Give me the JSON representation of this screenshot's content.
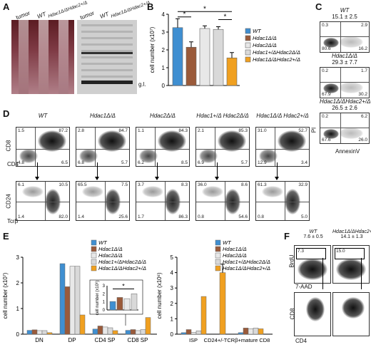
{
  "panelA": {
    "label": "A",
    "lanes": [
      "tumor",
      "WT",
      "Hdac1Δ/ΔHdac2+/Δ",
      "tumor",
      "WT",
      "Hdac1Δ/ΔHdac2+/Δ"
    ],
    "gl": "g.l."
  },
  "panelB": {
    "label": "B",
    "ylabel": "cell number (x10⁷)",
    "legend": [
      "WT",
      "Hdac1Δ/Δ",
      "Hdac2Δ/Δ",
      "Hdac1+/ΔHdac2Δ/Δ",
      "Hdac1Δ/ΔHdac2+/Δ"
    ],
    "star": "*"
  },
  "chart_data": [
    {
      "type": "bar",
      "categories": [
        "WT",
        "Hdac1Δ/Δ",
        "Hdac2Δ/Δ",
        "Hdac1+/ΔHdac2Δ/Δ",
        "Hdac1Δ/ΔHdac2+/Δ"
      ],
      "values": [
        3.25,
        2.15,
        3.2,
        3.15,
        1.55
      ],
      "errors": [
        0.5,
        0.3,
        0.15,
        0.15,
        0.3
      ],
      "ylabel": "cell number (x10⁷)",
      "ylim": [
        0,
        4
      ],
      "yticks": [
        0,
        1,
        2,
        3,
        4
      ],
      "colors": [
        "#3f8fd1",
        "#9a5a3a",
        "#e8e8e8",
        "#d9d9d9",
        "#f0a020"
      ]
    },
    {
      "type": "bar",
      "categories": [
        "DN",
        "DP",
        "CD4 SP",
        "CD8 SP"
      ],
      "series": [
        {
          "name": "WT",
          "values": [
            0.15,
            2.75,
            0.2,
            0.15
          ]
        },
        {
          "name": "Hdac1Δ/Δ",
          "values": [
            0.17,
            1.85,
            0.32,
            0.18
          ]
        },
        {
          "name": "Hdac2Δ/Δ",
          "values": [
            0.14,
            2.65,
            0.28,
            0.14
          ]
        },
        {
          "name": "Hdac1+/ΔHdac2Δ/Δ",
          "values": [
            0.14,
            2.65,
            0.25,
            0.18
          ]
        },
        {
          "name": "Hdac1Δ/ΔHdac2+/Δ",
          "values": [
            0.06,
            0.75,
            0.14,
            0.65
          ]
        }
      ],
      "ylabel": "cell number (x10⁷)",
      "ylim": [
        0,
        3
      ],
      "yticks": [
        0,
        1,
        2,
        3
      ]
    },
    {
      "type": "bar",
      "categories": [
        "WT",
        "Hdac1Δ/Δ",
        "Hdac2Δ/Δ",
        "Hdac1+/ΔHdac2Δ/Δ"
      ],
      "values": [
        1.05,
        1.55,
        1.4,
        2.0
      ],
      "ylabel": "cell number (x10⁶)",
      "ylim": [
        0,
        3
      ],
      "yticks": [
        0,
        1,
        2,
        3
      ],
      "star": "*"
    },
    {
      "type": "bar",
      "categories": [
        "ISP",
        "CD24+/-TCRβ+mature CD8"
      ],
      "series": [
        {
          "name": "WT",
          "values": [
            0.1,
            0.1
          ]
        },
        {
          "name": "Hdac1Δ/Δ",
          "values": [
            0.3,
            0.4
          ]
        },
        {
          "name": "Hdac2Δ/Δ",
          "values": [
            0.12,
            0.35
          ]
        },
        {
          "name": "Hdac1+/ΔHdac2Δ/Δ",
          "values": [
            0.22,
            0.4
          ]
        },
        {
          "name": "Hdac1Δ/ΔHdac2+/Δ",
          "values": [
            2.45,
            0.35
          ]
        }
      ],
      "extra": {
        "label": "CD24+/-TCRβ+mature CD8",
        "value": 4.0
      },
      "ylabel": "cell number (x10⁶)",
      "ylim": [
        0,
        5
      ],
      "yticks": [
        0,
        1,
        2,
        3,
        4,
        5
      ]
    }
  ],
  "panelC": {
    "label": "C",
    "plots": [
      {
        "title": "WT",
        "stat": "15.1 ± 2.5",
        "q": [
          "0.3",
          "2.9",
          "80.6",
          "16.2"
        ]
      },
      {
        "title": "Hdac1Δ/Δ",
        "stat": "29.3 ± 7.7",
        "q": [
          "0.2",
          "1.7",
          "67.9",
          "30.2"
        ]
      },
      {
        "title": "Hdac1Δ/ΔHdac2+/Δ",
        "stat": "26.5 ± 2.6",
        "q": [
          "0.2",
          "6.2",
          "67.6",
          "26.0"
        ]
      }
    ],
    "xlabel": "AnnexinV",
    "ylabel": "PI"
  },
  "panelD": {
    "label": "D",
    "genotypes": [
      "WT",
      "Hdac1Δ/Δ",
      "Hdac2Δ/Δ",
      "Hdac1+/Δ Hdac2Δ/Δ",
      "Hdac1Δ/Δ Hdac2+/Δ"
    ],
    "top": [
      [
        "1.5",
        "87.2",
        "4.8",
        "6.5"
      ],
      [
        "2.8",
        "84.7",
        "6.8",
        "5.7"
      ],
      [
        "1.1",
        "84.3",
        "6.2",
        "8.5"
      ],
      [
        "2.1",
        "85.3",
        "6.9",
        "5.7"
      ],
      [
        "31.0",
        "52.7",
        "12.9",
        "3.4"
      ]
    ],
    "bottom": [
      [
        "6.1",
        "10.5",
        "1.4",
        "82.0"
      ],
      [
        "65.5",
        "7.5",
        "1.4",
        "25.6"
      ],
      [
        "3.7",
        "8.3",
        "1.7",
        "86.3"
      ],
      [
        "36.0",
        "8.6",
        "0.8",
        "54.6"
      ],
      [
        "61.3",
        "32.9",
        "0.8",
        "5.0"
      ]
    ],
    "ylab_top": "CD8",
    "xlab_top": "CD4",
    "ylab_bot": "CD24",
    "xlab_bot": "Tcrβ"
  },
  "panelE": {
    "label": "E",
    "left_cats": [
      "DN",
      "DP",
      "CD4 SP",
      "CD8 SP"
    ],
    "right_cats": [
      "ISP",
      "CD24+/-TCRβ+mature CD8"
    ],
    "ylabel_left": "cell number (x10⁷)",
    "ylabel_right": "cell number (x10⁶)",
    "inset_ylabel": "cell number (x10⁶)",
    "legend": [
      "WT",
      "Hdac1Δ/Δ",
      "Hdac2Δ/Δ",
      "Hdac1+/ΔHdac2Δ/Δ",
      "Hdac1Δ/ΔHdac2+/Δ"
    ]
  },
  "panelF": {
    "label": "F",
    "plots": [
      {
        "title": "WT",
        "stat": "7.6 ± 0.5",
        "gate": "7.3"
      },
      {
        "title": "Hdac1Δ/ΔHdac2+/Δ",
        "stat": "14.1 ± 1.3",
        "gate": "15.0"
      }
    ],
    "ylab_top": "BrdU",
    "xlab_top": "7-AAD",
    "ylab_bot": "CD8",
    "xlab_bot": "CD4"
  },
  "colors": {
    "wt": "#3f8fd1",
    "h1": "#9a5a3a",
    "h2": "#e8e8e8",
    "h12a": "#d9d9d9",
    "h12b": "#f0a020"
  }
}
